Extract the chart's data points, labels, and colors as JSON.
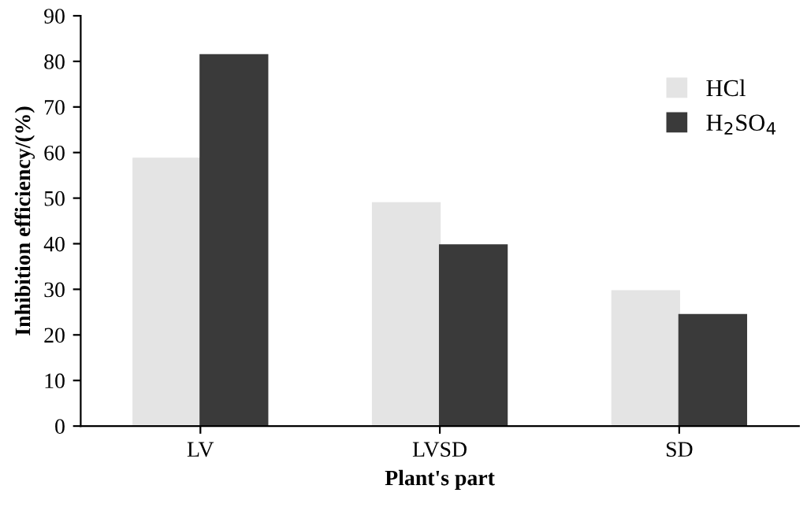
{
  "chart_data": {
    "type": "bar",
    "xlabel": "Plant's part",
    "ylabel": "Inhibition efficiency/(%)",
    "categories": [
      "LV",
      "LVSD",
      "SD"
    ],
    "series": [
      {
        "name": "HCl",
        "color": "#e4e4e4",
        "values": [
          58.7,
          48.9,
          29.6
        ]
      },
      {
        "name": "H$_{2}$SO$_{4}$",
        "color": "#3a3a3a",
        "values": [
          81.4,
          39.7,
          24.4
        ]
      }
    ],
    "ylim": [
      0,
      90
    ],
    "yticks": [
      0,
      10,
      20,
      30,
      40,
      50,
      60,
      70,
      80,
      90
    ],
    "grid": false,
    "legend": "top right"
  }
}
